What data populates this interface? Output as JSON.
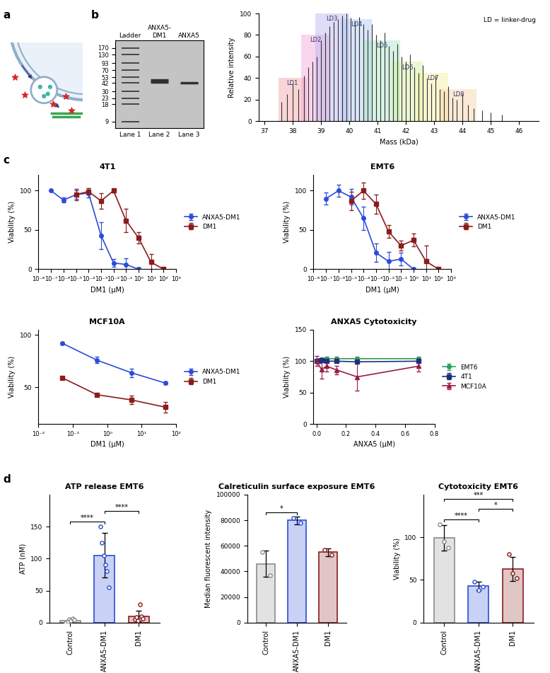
{
  "panel_labels": [
    "a",
    "b",
    "c",
    "d"
  ],
  "gel": {
    "type": "gel",
    "lane_headers": [
      "Ladder",
      "ANXA5-\nDM1",
      "ANXA5"
    ],
    "lanes": [
      "Lane 1",
      "Lane 2",
      "Lane 3"
    ],
    "ladder": [
      170,
      130,
      93,
      70,
      53,
      42,
      30,
      23,
      18,
      9
    ],
    "bands": [
      [
        170,
        130,
        93,
        70,
        53,
        42,
        30,
        23,
        18,
        9
      ],
      [
        47,
        44
      ],
      [
        42
      ]
    ],
    "ylim": [
      7,
      230
    ],
    "log": "y"
  },
  "chart_data": [
    {
      "type": "stem",
      "xlabel": "Mass (kDa)",
      "ylabel": "Relative intensity",
      "x": [
        37.6,
        37.8,
        38.0,
        38.2,
        38.4,
        38.55,
        38.7,
        38.85,
        39.0,
        39.15,
        39.3,
        39.45,
        39.6,
        39.75,
        39.9,
        40.05,
        40.2,
        40.35,
        40.5,
        40.65,
        40.8,
        40.95,
        41.1,
        41.25,
        41.4,
        41.55,
        41.7,
        41.85,
        42.0,
        42.15,
        42.3,
        42.45,
        42.6,
        42.75,
        42.9,
        43.05,
        43.2,
        43.35,
        43.5,
        43.65,
        43.8,
        44.0,
        44.2,
        44.4,
        44.7,
        45.0,
        45.4
      ],
      "values": [
        18,
        25,
        35,
        30,
        42,
        50,
        55,
        60,
        75,
        82,
        88,
        92,
        95,
        98,
        100,
        96,
        92,
        97,
        90,
        85,
        90,
        80,
        75,
        82,
        70,
        65,
        72,
        60,
        55,
        62,
        50,
        45,
        52,
        40,
        35,
        42,
        30,
        28,
        32,
        22,
        20,
        25,
        15,
        12,
        10,
        8,
        6
      ],
      "color": "#333333",
      "xlim": [
        36.8,
        46.7
      ],
      "ylim": [
        0,
        100
      ],
      "xticks": [
        37,
        38,
        39,
        40,
        41,
        42,
        43,
        44,
        45,
        46
      ],
      "yticks": [
        0,
        20,
        40,
        60,
        80,
        100
      ],
      "regions": [
        {
          "label": "LD1",
          "start": 37.5,
          "end": 38.5,
          "height": 40,
          "color": "#f4a3a3"
        },
        {
          "label": "LD2",
          "start": 38.3,
          "end": 39.3,
          "height": 80,
          "color": "#f2a6d8"
        },
        {
          "label": "LD3",
          "start": 38.8,
          "end": 40.0,
          "height": 100,
          "color": "#b9b3f0"
        },
        {
          "label": "LD4",
          "start": 39.7,
          "end": 40.8,
          "height": 95,
          "color": "#a9c8f2"
        },
        {
          "label": "LD5",
          "start": 40.5,
          "end": 41.8,
          "height": 75,
          "color": "#a8e6c3"
        },
        {
          "label": "LD6",
          "start": 41.5,
          "end": 42.6,
          "height": 55,
          "color": "#d5ef9e"
        },
        {
          "label": "LD7",
          "start": 42.4,
          "end": 43.5,
          "height": 45,
          "color": "#f6ec9a"
        },
        {
          "label": "LD8",
          "start": 43.2,
          "end": 44.5,
          "height": 30,
          "color": "#f5d3a8"
        }
      ],
      "annotation": "LD = linker-drug"
    },
    {
      "type": "line",
      "title": "4T1",
      "xlabel": "DM1 (µM)",
      "ylabel": "Viability (%)",
      "log": "x",
      "xlim": [
        1e-08,
        1000
      ],
      "ylim": [
        0,
        120
      ],
      "xticks": [
        {
          "value": 1e-08,
          "label": "10⁻⁸"
        },
        {
          "value": 1e-07,
          "label": "10⁻⁷"
        },
        {
          "value": 1e-06,
          "label": "10⁻⁶"
        },
        {
          "value": 1e-05,
          "label": "10⁻⁵"
        },
        {
          "value": 0.0001,
          "label": "10⁻⁴"
        },
        {
          "value": 0.001,
          "label": "10⁻³"
        },
        {
          "value": 0.01,
          "label": "10⁻²"
        },
        {
          "value": 0.1,
          "label": "10⁻¹"
        },
        {
          "value": 1,
          "label": "10⁰"
        },
        {
          "value": 10,
          "label": "10¹"
        },
        {
          "value": 100,
          "label": "10²"
        },
        {
          "value": 1000,
          "label": "10³"
        }
      ],
      "yticks": [
        0,
        50,
        100
      ],
      "legend": "center left",
      "series": [
        {
          "name": "ANXA5-DM1",
          "color": "#2b4bd8",
          "marker": "circle",
          "x": [
            1e-07,
            1e-06,
            1e-05,
            0.0001,
            0.001,
            0.01,
            0.1,
            1
          ],
          "values": [
            100,
            88,
            95,
            97,
            43,
            8,
            6,
            0
          ],
          "errors": [
            0,
            3,
            5,
            6,
            17,
            5,
            8,
            2
          ]
        },
        {
          "name": "DM1",
          "color": "#8b1c1c",
          "marker": "square",
          "x": [
            1e-05,
            0.0001,
            0.001,
            0.01,
            0.1,
            1,
            10,
            100
          ],
          "values": [
            95,
            99,
            87,
            100,
            62,
            40,
            9,
            0
          ],
          "errors": [
            7,
            4,
            10,
            2,
            15,
            7,
            10,
            2
          ]
        }
      ]
    },
    {
      "type": "line",
      "title": "EMT6",
      "xlabel": "DM1 (µM)",
      "ylabel": "Viability (%)",
      "log": "x",
      "xlim": [
        1e-08,
        1000
      ],
      "ylim": [
        0,
        120
      ],
      "xticks": [
        {
          "value": 1e-08,
          "label": "10⁻⁸"
        },
        {
          "value": 1e-07,
          "label": "10⁻⁷"
        },
        {
          "value": 1e-06,
          "label": "10⁻⁶"
        },
        {
          "value": 1e-05,
          "label": "10⁻⁵"
        },
        {
          "value": 0.0001,
          "label": "10⁻⁴"
        },
        {
          "value": 0.001,
          "label": "10⁻³"
        },
        {
          "value": 0.01,
          "label": "10⁻²"
        },
        {
          "value": 0.1,
          "label": "10⁻¹"
        },
        {
          "value": 1,
          "label": "10⁰"
        },
        {
          "value": 10,
          "label": "10¹"
        },
        {
          "value": 100,
          "label": "10²"
        },
        {
          "value": 1000,
          "label": "10³"
        }
      ],
      "yticks": [
        0,
        50,
        100
      ],
      "legend": "center left",
      "series": [
        {
          "name": "ANXA5-DM1",
          "color": "#2b4bd8",
          "marker": "circle",
          "x": [
            1e-07,
            1e-06,
            1e-05,
            0.0001,
            0.001,
            0.01,
            0.1,
            1
          ],
          "values": [
            90,
            100,
            92,
            65,
            21,
            10,
            13,
            0
          ],
          "errors": [
            8,
            8,
            10,
            15,
            12,
            12,
            8,
            1
          ]
        },
        {
          "name": "DM1",
          "color": "#8b1c1c",
          "marker": "square",
          "x": [
            1e-05,
            0.0001,
            0.001,
            0.01,
            0.1,
            1,
            10,
            100
          ],
          "values": [
            87,
            100,
            83,
            48,
            30,
            37,
            10,
            0
          ],
          "errors": [
            12,
            10,
            12,
            8,
            6,
            8,
            20,
            2
          ]
        }
      ]
    },
    {
      "type": "line",
      "title": "MCF10A",
      "xlabel": "DM1 (µM)",
      "ylabel": "Viability (%)",
      "log": "x",
      "xlim": [
        0.01,
        100
      ],
      "ylim": [
        15,
        105
      ],
      "xticks": [
        {
          "value": 0.01,
          "label": "10⁻²"
        },
        {
          "value": 0.1,
          "label": "10⁻¹"
        },
        {
          "value": 1,
          "label": "10⁰"
        },
        {
          "value": 10,
          "label": "10¹"
        },
        {
          "value": 100,
          "label": "10²"
        }
      ],
      "yticks": [
        50,
        100
      ],
      "legend": "center left",
      "series": [
        {
          "name": "ANXA5-DM1",
          "color": "#2b4bd8",
          "marker": "circle",
          "x": [
            0.05,
            0.5,
            5,
            50
          ],
          "values": [
            92,
            76,
            64,
            54
          ],
          "errors": [
            1,
            3,
            4,
            1
          ]
        },
        {
          "name": "DM1",
          "color": "#8b1c1c",
          "marker": "square",
          "x": [
            0.05,
            0.5,
            5,
            50
          ],
          "values": [
            59,
            43,
            38,
            31
          ],
          "errors": [
            1,
            1,
            4,
            5
          ]
        }
      ]
    },
    {
      "type": "line",
      "title": "ANXA5 Cytotoxicity",
      "xlabel": "ANXA5 (µM)",
      "ylabel": "Viability (%)",
      "xlim": [
        -0.02,
        0.8
      ],
      "ylim": [
        0,
        150
      ],
      "xticks": [
        0.0,
        0.2,
        0.4,
        0.6,
        0.8
      ],
      "yticks": [
        0,
        50,
        100,
        150
      ],
      "legend": "center left",
      "series": [
        {
          "name": "EMT6",
          "color": "#2e9e5b",
          "marker": "circle",
          "x": [
            0,
            0.017,
            0.034,
            0.069,
            0.138,
            0.276,
            0.69
          ],
          "values": [
            100,
            101,
            103,
            104,
            104,
            104,
            104
          ],
          "errors": [
            3,
            3,
            3,
            3,
            3,
            3,
            3
          ]
        },
        {
          "name": "4T1",
          "color": "#1f2f7a",
          "marker": "square",
          "x": [
            0,
            0.017,
            0.034,
            0.069,
            0.138,
            0.276,
            0.69
          ],
          "values": [
            100,
            100,
            101,
            100,
            100,
            99,
            100
          ],
          "errors": [
            2,
            2,
            2,
            2,
            2,
            2,
            2
          ]
        },
        {
          "name": "MCF10A",
          "color": "#9b1b4b",
          "marker": "triangle",
          "x": [
            0,
            0.034,
            0.069,
            0.138,
            0.276,
            0.69
          ],
          "values": [
            100,
            87,
            92,
            86,
            75,
            92
          ],
          "errors": [
            8,
            15,
            8,
            7,
            22,
            8
          ]
        }
      ]
    },
    {
      "type": "bar",
      "title": "ATP release EMT6",
      "ylabel": "ATP (nM)",
      "categories": [
        "Control",
        "ANXA5-DM1",
        "DM1"
      ],
      "values": [
        3,
        105,
        10
      ],
      "errors": [
        2,
        35,
        8
      ],
      "colors": [
        "#8c8c8c",
        "#2b4bd8",
        "#8b1c1c"
      ],
      "points": [
        [
          0,
          2,
          5,
          3,
          6,
          4
        ],
        [
          150,
          125,
          105,
          90,
          80,
          55
        ],
        [
          5,
          8,
          3,
          28,
          10,
          6
        ]
      ],
      "ylim": [
        0,
        200
      ],
      "yticks": [
        0,
        50,
        100,
        150
      ],
      "comparisons": [
        {
          "from": "Control",
          "to": "ANXA5-DM1",
          "label": "****"
        },
        {
          "from": "ANXA5-DM1",
          "to": "DM1",
          "label": "****"
        }
      ]
    },
    {
      "type": "bar",
      "title": "Calreticulin surface exposure EMT6",
      "ylabel": "Median fluorescent intensity",
      "categories": [
        "Control",
        "ANXA5-DM1",
        "DM1"
      ],
      "values": [
        46000,
        80000,
        55000
      ],
      "errors": [
        10000,
        3000,
        3000
      ],
      "colors": [
        "#8c8c8c",
        "#2b4bd8",
        "#8b1c1c"
      ],
      "points": [
        [
          55000,
          37000
        ],
        [
          82000,
          78000
        ],
        [
          57000,
          53000
        ]
      ],
      "ylim": [
        0,
        100000
      ],
      "yticks": [
        0,
        20000,
        40000,
        60000,
        80000,
        100000
      ],
      "comparisons": [
        {
          "from": "Control",
          "to": "ANXA5-DM1",
          "label": "*"
        }
      ]
    },
    {
      "type": "bar",
      "title": "Cytotoxicity EMT6",
      "ylabel": "Viability (%)",
      "categories": [
        "Control",
        "ANXA5-DM1",
        "DM1"
      ],
      "values": [
        99,
        43,
        63
      ],
      "errors": [
        15,
        5,
        14
      ],
      "colors": [
        "#8c8c8c",
        "#2b4bd8",
        "#8b1c1c"
      ],
      "points": [
        [
          115,
          95,
          88
        ],
        [
          48,
          38,
          42
        ],
        [
          80,
          58,
          52
        ]
      ],
      "ylim": [
        0,
        150
      ],
      "yticks": [
        0,
        50,
        100
      ],
      "comparisons": [
        {
          "from": "Control",
          "to": "ANXA5-DM1",
          "label": "****"
        },
        {
          "from": "ANXA5-DM1",
          "to": "DM1",
          "label": "*"
        },
        {
          "from": "Control",
          "to": "DM1",
          "label": "***"
        }
      ]
    }
  ]
}
